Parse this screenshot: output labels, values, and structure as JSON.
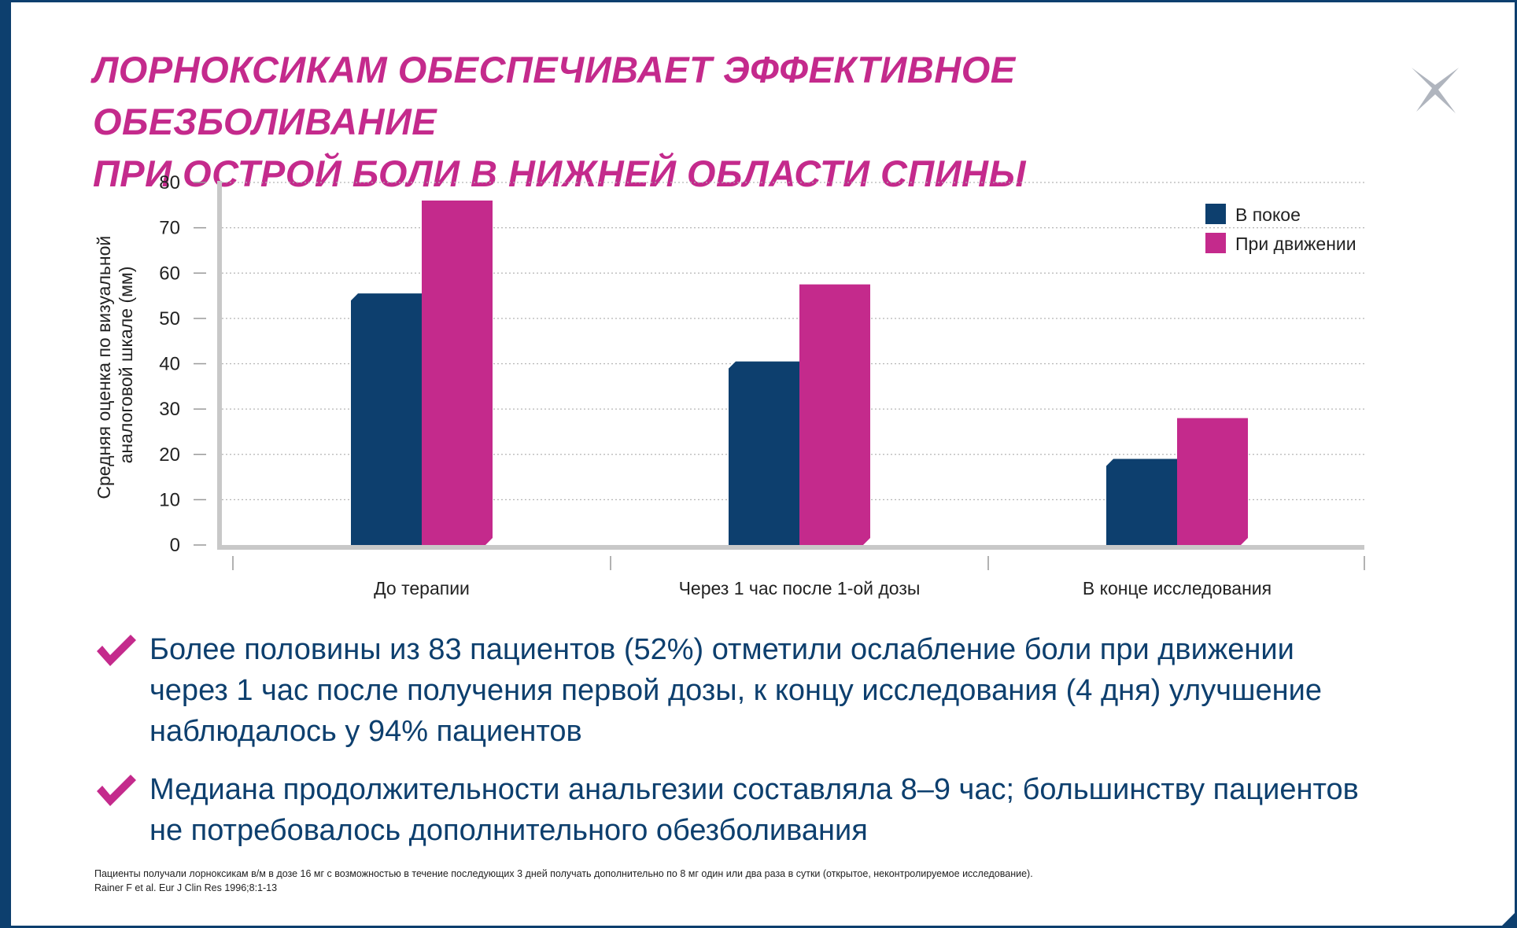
{
  "title": {
    "line1": "ЛОРНОКСИКАМ ОБЕСПЕЧИВАЕТ ЭФФЕКТИВНОЕ ОБЕЗБОЛИВАНИЕ",
    "line2": "ПРИ ОСТРОЙ БОЛИ В НИЖНЕЙ ОБЛАСТИ СПИНЫ"
  },
  "colors": {
    "accent_magenta": "#c42a8c",
    "brand_navy": "#0d3f6e",
    "axis_gray": "#c8c8c8",
    "logo_gray": "#b0b5be"
  },
  "logo_icon": "x-mark-icon",
  "chart_data": {
    "type": "bar",
    "categories": [
      "До терапии",
      "Через 1 час после 1-ой дозы",
      "В конце исследования"
    ],
    "series": [
      {
        "name": "В покое",
        "values": [
          55.5,
          40.5,
          19
        ],
        "color": "#0d3f6e"
      },
      {
        "name": "При движении",
        "values": [
          76,
          57.5,
          28
        ],
        "color": "#c42a8c"
      }
    ],
    "ylabel_line1": "Средняя оценка по визуальной",
    "ylabel_line2": "аналоговой шкале (мм)",
    "xlabel": "",
    "ylim": [
      0,
      80
    ],
    "yticks": [
      0,
      10,
      20,
      30,
      40,
      50,
      60,
      70,
      80
    ],
    "grid": "horizontal dotted",
    "legend_position": "top-right"
  },
  "bullets": [
    {
      "icon": "check-icon",
      "lines": [
        "Более половины из 83 пациентов (52%) отметили ослабление боли при движении",
        "через 1 час после получения первой дозы, к концу исследования (4 дня) улучшение",
        "наблюдалось у 94% пациентов"
      ]
    },
    {
      "icon": "check-icon",
      "lines": [
        "Медиана продолжительности анальгезии составляла 8–9 час; большинству пациентов",
        "не потребовалось дополнительного обезболивания"
      ]
    }
  ],
  "footnote": {
    "line1": "Пациенты получали лорноксикам в/м в дозе 16 мг с возможностью в течение последующих 3 дней получать дополнительно по 8 мг один или два раза в сутки (открытое, неконтролируемое исследование).",
    "line2": "Rainer F et al. Eur J Clin Res 1996;8:1-13"
  }
}
